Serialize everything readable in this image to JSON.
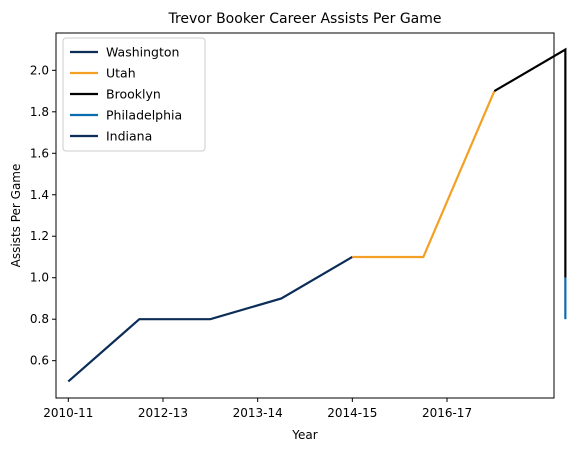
{
  "chart_data": {
    "type": "line",
    "title": "Trevor Booker Career Assists Per Game",
    "xlabel": "Year",
    "ylabel": "Assists Per Game",
    "x_tick_labels": [
      "2010-11",
      "2012-13",
      "2013-14",
      "2014-15",
      "2016-17"
    ],
    "x_tick_positions": [
      0,
      1,
      2,
      3,
      4
    ],
    "xlim": [
      -0.13,
      5.13
    ],
    "yticks": [
      "0.6",
      "0.8",
      "1.0",
      "1.2",
      "1.4",
      "1.6",
      "1.8",
      "2.0"
    ],
    "ylim": [
      0.42,
      2.18
    ],
    "grid": false,
    "legend_position": "top-left",
    "series": [
      {
        "name": "Washington",
        "color": "#0b2d58",
        "x": [
          0,
          0.75,
          1.5,
          2.25,
          3.0
        ],
        "y": [
          0.5,
          0.8,
          0.8,
          0.9,
          1.1
        ]
      },
      {
        "name": "Utah",
        "color": "#f4a024",
        "x": [
          3.0,
          3.75,
          4.5
        ],
        "y": [
          1.1,
          1.1,
          1.9
        ]
      },
      {
        "name": "Brooklyn",
        "color": "#000000",
        "x": [
          4.5,
          5.25,
          5.25
        ],
        "y": [
          1.9,
          2.1,
          1.0
        ]
      },
      {
        "name": "Philadelphia",
        "color": "#0a6cb0",
        "x": [
          5.25,
          5.25
        ],
        "y": [
          1.0,
          0.8
        ]
      },
      {
        "name": "Indiana",
        "color": "#0b2d58",
        "x": [
          5.25,
          5.25
        ],
        "y": [
          0.8,
          0.8
        ]
      }
    ]
  }
}
